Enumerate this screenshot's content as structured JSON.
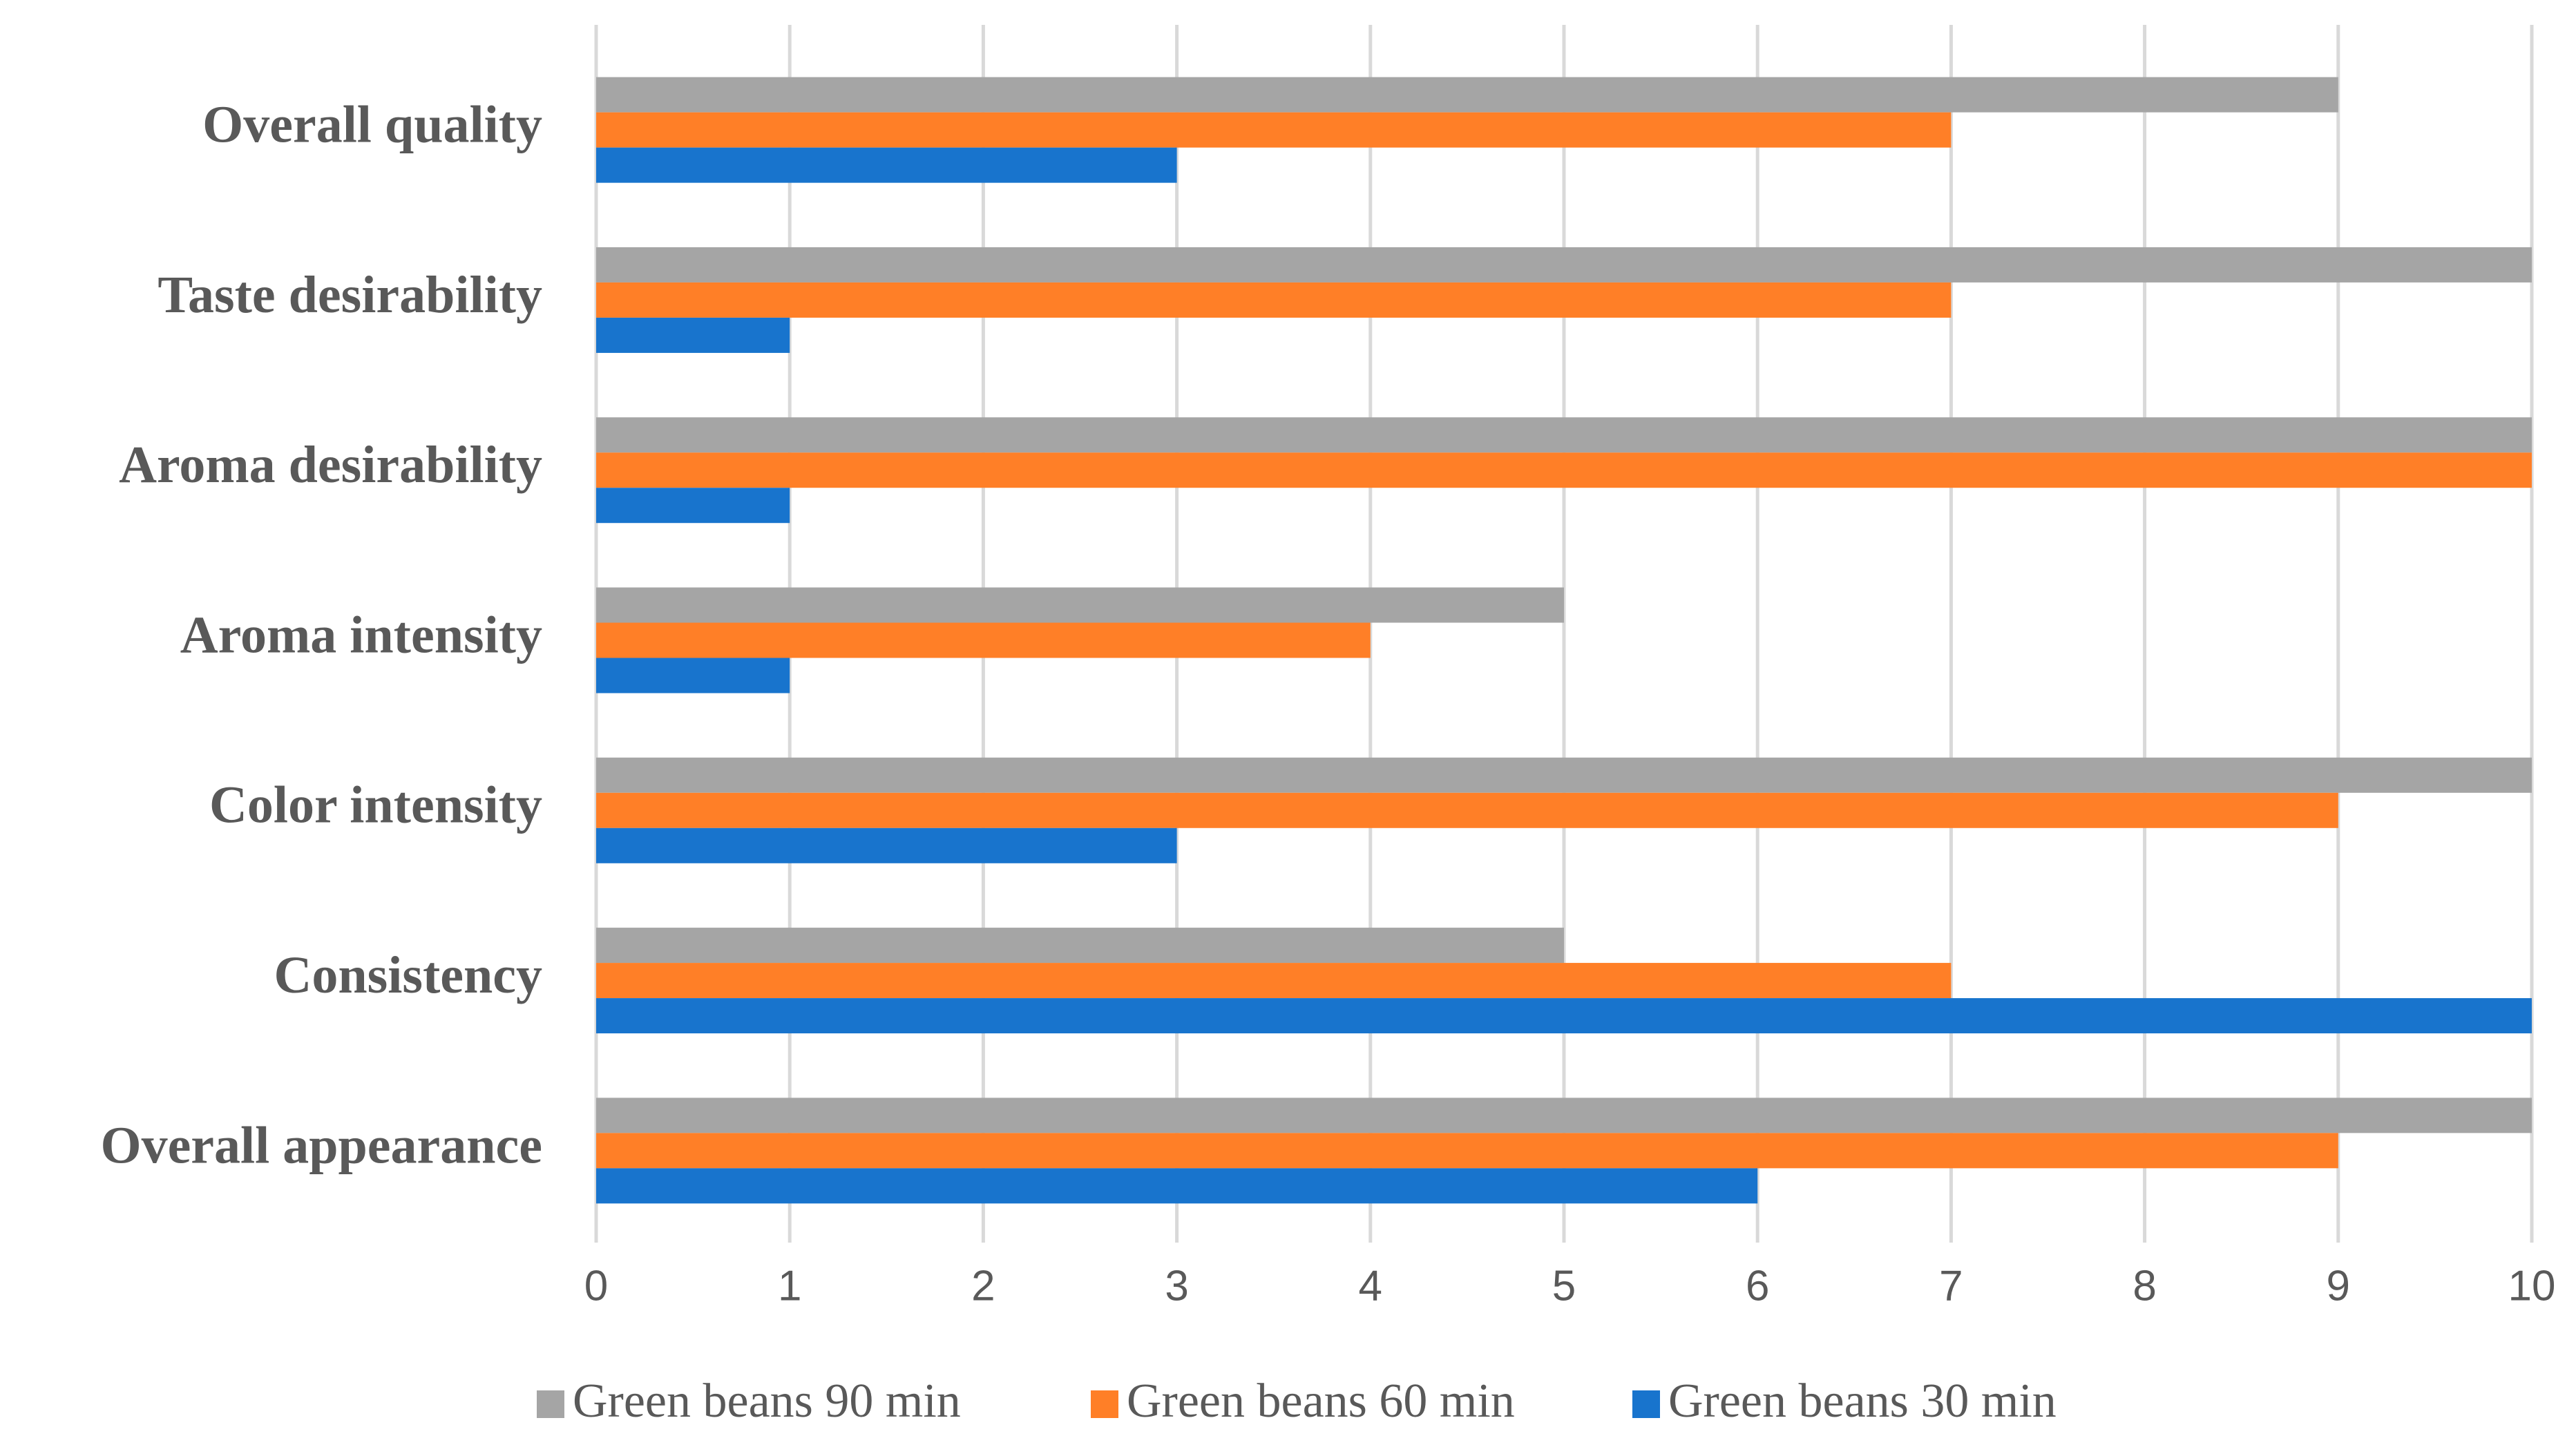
{
  "chart_data": {
    "type": "bar",
    "orientation": "horizontal",
    "categories": [
      "Overall quality",
      "Taste desirability",
      "Aroma desirability",
      "Aroma intensity",
      "Color intensity",
      "Consistency",
      "Overall appearance"
    ],
    "series": [
      {
        "name": "Green beans 90 min",
        "color": "#a5a5a5",
        "values": [
          9,
          10,
          10,
          5,
          10,
          5,
          10
        ]
      },
      {
        "name": "Green beans 60 min",
        "color": "#ff7f27",
        "values": [
          7,
          7,
          10,
          4,
          9,
          7,
          9
        ]
      },
      {
        "name": "Green beans 30 min",
        "color": "#1874cd",
        "values": [
          3,
          1,
          1,
          1,
          3,
          10,
          6
        ]
      }
    ],
    "xlim": [
      0,
      10
    ],
    "xticks": [
      0,
      1,
      2,
      3,
      4,
      5,
      6,
      7,
      8,
      9,
      10
    ],
    "grid": true,
    "legend": "bottom"
  }
}
